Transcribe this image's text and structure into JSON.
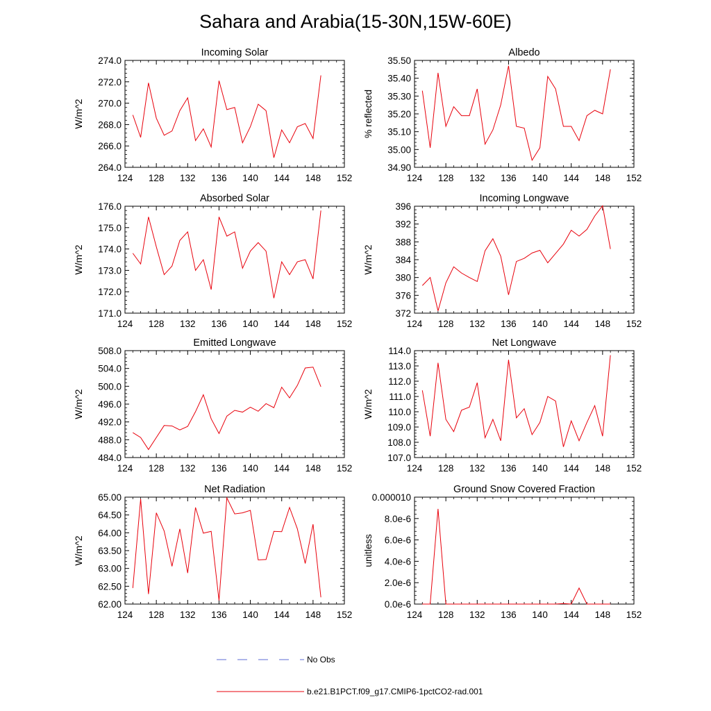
{
  "title": "Sahara and Arabia(15-30N,15W-60E)",
  "colors": {
    "model": "#e8000b",
    "obs": "#5b6bd6",
    "axis": "#000000"
  },
  "legend": {
    "obs_label": "No Obs",
    "model_label": "b.e21.B1PCT.f09_g17.CMIP6-1pctCO2-rad.001"
  },
  "chart_data": [
    {
      "type": "line",
      "title": "Incoming Solar",
      "ylabel": "W/m^2",
      "xlim": [
        124,
        152
      ],
      "ylim": [
        264,
        274
      ],
      "xticks": [
        "124",
        "128",
        "132",
        "136",
        "140",
        "144",
        "148",
        "152"
      ],
      "yticks": [
        "264.0",
        "266.0",
        "268.0",
        "270.0",
        "272.0",
        "274.0"
      ],
      "x": [
        125,
        126,
        127,
        128,
        129,
        130,
        131,
        132,
        133,
        134,
        135,
        136,
        137,
        138,
        139,
        140,
        141,
        142,
        143,
        144,
        145,
        146,
        147,
        148,
        149
      ],
      "series": [
        {
          "values": [
            268.9,
            266.8,
            271.9,
            268.6,
            267.0,
            267.4,
            269.3,
            270.5,
            266.5,
            267.6,
            265.9,
            272.1,
            269.4,
            269.6,
            266.3,
            267.8,
            269.9,
            269.3,
            264.9,
            267.5,
            266.3,
            267.8,
            268.1,
            266.7,
            272.6
          ]
        }
      ]
    },
    {
      "type": "line",
      "title": "Albedo",
      "ylabel": "% reflected",
      "xlim": [
        124,
        152
      ],
      "ylim": [
        34.9,
        35.5
      ],
      "xticks": [
        "124",
        "128",
        "132",
        "136",
        "140",
        "144",
        "148",
        "152"
      ],
      "yticks": [
        "34.90",
        "35.00",
        "35.10",
        "35.20",
        "35.30",
        "35.40",
        "35.50"
      ],
      "x": [
        125,
        126,
        127,
        128,
        129,
        130,
        131,
        132,
        133,
        134,
        135,
        136,
        137,
        138,
        139,
        140,
        141,
        142,
        143,
        144,
        145,
        146,
        147,
        148,
        149
      ],
      "series": [
        {
          "values": [
            35.33,
            35.01,
            35.43,
            35.13,
            35.24,
            35.19,
            35.19,
            35.34,
            35.03,
            35.11,
            35.25,
            35.47,
            35.13,
            35.12,
            34.94,
            35.01,
            35.41,
            35.34,
            35.13,
            35.13,
            35.05,
            35.19,
            35.22,
            35.2,
            35.45
          ]
        }
      ]
    },
    {
      "type": "line",
      "title": "Absorbed Solar",
      "ylabel": "W/m^2",
      "xlim": [
        124,
        152
      ],
      "ylim": [
        171,
        176
      ],
      "xticks": [
        "124",
        "128",
        "132",
        "136",
        "140",
        "144",
        "148",
        "152"
      ],
      "yticks": [
        "171.0",
        "172.0",
        "173.0",
        "174.0",
        "175.0",
        "176.0"
      ],
      "x": [
        125,
        126,
        127,
        128,
        129,
        130,
        131,
        132,
        133,
        134,
        135,
        136,
        137,
        138,
        139,
        140,
        141,
        142,
        143,
        144,
        145,
        146,
        147,
        148,
        149
      ],
      "series": [
        {
          "values": [
            173.8,
            173.3,
            175.5,
            174.1,
            172.8,
            173.2,
            174.4,
            174.8,
            173.0,
            173.5,
            172.1,
            175.5,
            174.6,
            174.8,
            173.1,
            173.9,
            174.3,
            173.9,
            171.7,
            173.4,
            172.8,
            173.4,
            173.5,
            172.6,
            175.8
          ]
        }
      ]
    },
    {
      "type": "line",
      "title": "Incoming Longwave",
      "ylabel": "W/m^2",
      "xlim": [
        124,
        152
      ],
      "ylim": [
        372,
        396
      ],
      "xticks": [
        "124",
        "128",
        "132",
        "136",
        "140",
        "144",
        "148",
        "152"
      ],
      "yticks": [
        "372",
        "376",
        "380",
        "384",
        "388",
        "392",
        "396"
      ],
      "x": [
        125,
        126,
        127,
        128,
        129,
        130,
        131,
        132,
        133,
        134,
        135,
        136,
        137,
        138,
        139,
        140,
        141,
        142,
        143,
        144,
        145,
        146,
        147,
        148,
        149
      ],
      "series": [
        {
          "values": [
            378.2,
            380.0,
            372.5,
            378.8,
            382.4,
            381.0,
            380.0,
            379.1,
            386.0,
            388.7,
            384.8,
            376.1,
            383.6,
            384.3,
            385.5,
            386.1,
            383.3,
            385.4,
            387.5,
            390.6,
            389.3,
            390.8,
            393.8,
            396.1,
            386.4
          ]
        }
      ]
    },
    {
      "type": "line",
      "title": "Emitted Longwave",
      "ylabel": "W/m^2",
      "xlim": [
        124,
        152
      ],
      "ylim": [
        484,
        508
      ],
      "xticks": [
        "124",
        "128",
        "132",
        "136",
        "140",
        "144",
        "148",
        "152"
      ],
      "yticks": [
        "484.0",
        "488.0",
        "492.0",
        "496.0",
        "500.0",
        "504.0",
        "508.0"
      ],
      "x": [
        125,
        126,
        127,
        128,
        129,
        130,
        131,
        132,
        133,
        134,
        135,
        136,
        137,
        138,
        139,
        140,
        141,
        142,
        143,
        144,
        145,
        146,
        147,
        148,
        149
      ],
      "series": [
        {
          "values": [
            489.6,
            488.5,
            485.8,
            488.5,
            491.2,
            491.1,
            490.2,
            491.0,
            494.3,
            498.1,
            492.7,
            489.4,
            493.3,
            494.6,
            494.2,
            495.3,
            494.4,
            496.1,
            495.2,
            499.8,
            497.4,
            500.2,
            504.1,
            504.3,
            499.9
          ]
        }
      ]
    },
    {
      "type": "line",
      "title": "Net Longwave",
      "ylabel": "W/m^2",
      "xlim": [
        124,
        152
      ],
      "ylim": [
        107,
        114
      ],
      "xticks": [
        "124",
        "128",
        "132",
        "136",
        "140",
        "144",
        "148",
        "152"
      ],
      "yticks": [
        "107.0",
        "108.0",
        "109.0",
        "110.0",
        "111.0",
        "112.0",
        "113.0",
        "114.0"
      ],
      "x": [
        125,
        126,
        127,
        128,
        129,
        130,
        131,
        132,
        133,
        134,
        135,
        136,
        137,
        138,
        139,
        140,
        141,
        142,
        143,
        144,
        145,
        146,
        147,
        148,
        149
      ],
      "series": [
        {
          "values": [
            111.4,
            108.4,
            113.2,
            109.5,
            108.7,
            110.1,
            110.3,
            111.9,
            108.3,
            109.5,
            108.1,
            113.4,
            109.6,
            110.2,
            108.5,
            109.3,
            111.0,
            110.7,
            107.7,
            109.4,
            108.1,
            109.3,
            110.4,
            108.4,
            113.7
          ]
        }
      ]
    },
    {
      "type": "line",
      "title": "Net Radiation",
      "ylabel": "W/m^2",
      "xlim": [
        124,
        152
      ],
      "ylim": [
        62,
        65
      ],
      "xticks": [
        "124",
        "128",
        "132",
        "136",
        "140",
        "144",
        "148",
        "152"
      ],
      "yticks": [
        "62.00",
        "62.50",
        "63.00",
        "63.50",
        "64.00",
        "64.50",
        "65.00"
      ],
      "x": [
        125,
        126,
        127,
        128,
        129,
        130,
        131,
        132,
        133,
        134,
        135,
        136,
        137,
        138,
        139,
        140,
        141,
        142,
        143,
        144,
        145,
        146,
        147,
        148,
        149
      ],
      "series": [
        {
          "values": [
            62.45,
            64.95,
            62.28,
            64.56,
            64.05,
            63.06,
            64.11,
            62.87,
            64.71,
            63.99,
            64.04,
            62.1,
            64.98,
            64.53,
            64.56,
            64.63,
            63.24,
            63.25,
            64.04,
            64.03,
            64.71,
            64.11,
            63.14,
            64.24,
            62.19
          ]
        }
      ]
    },
    {
      "type": "line",
      "title": "Ground Snow Covered Fraction",
      "ylabel": "unitless",
      "xlim": [
        124,
        152
      ],
      "ylim": [
        0,
        1e-05
      ],
      "xticks": [
        "124",
        "128",
        "132",
        "136",
        "140",
        "144",
        "148",
        "152"
      ],
      "yticks": [
        "0.0e-6",
        "2.0e-6",
        "4.0e-6",
        "6.0e-6",
        "8.0e-6",
        "0.000010"
      ],
      "x": [
        125,
        126,
        127,
        128,
        129,
        130,
        131,
        132,
        133,
        134,
        135,
        136,
        137,
        138,
        139,
        140,
        141,
        142,
        143,
        144,
        145,
        146,
        147,
        148,
        149
      ],
      "series": [
        {
          "values": [
            0,
            0,
            8.9e-06,
            0,
            0,
            0,
            0,
            0,
            0,
            0,
            0,
            0,
            0,
            0,
            0,
            0,
            0,
            0,
            5e-08,
            0,
            1.5e-06,
            0,
            0,
            0,
            0
          ]
        }
      ]
    }
  ]
}
